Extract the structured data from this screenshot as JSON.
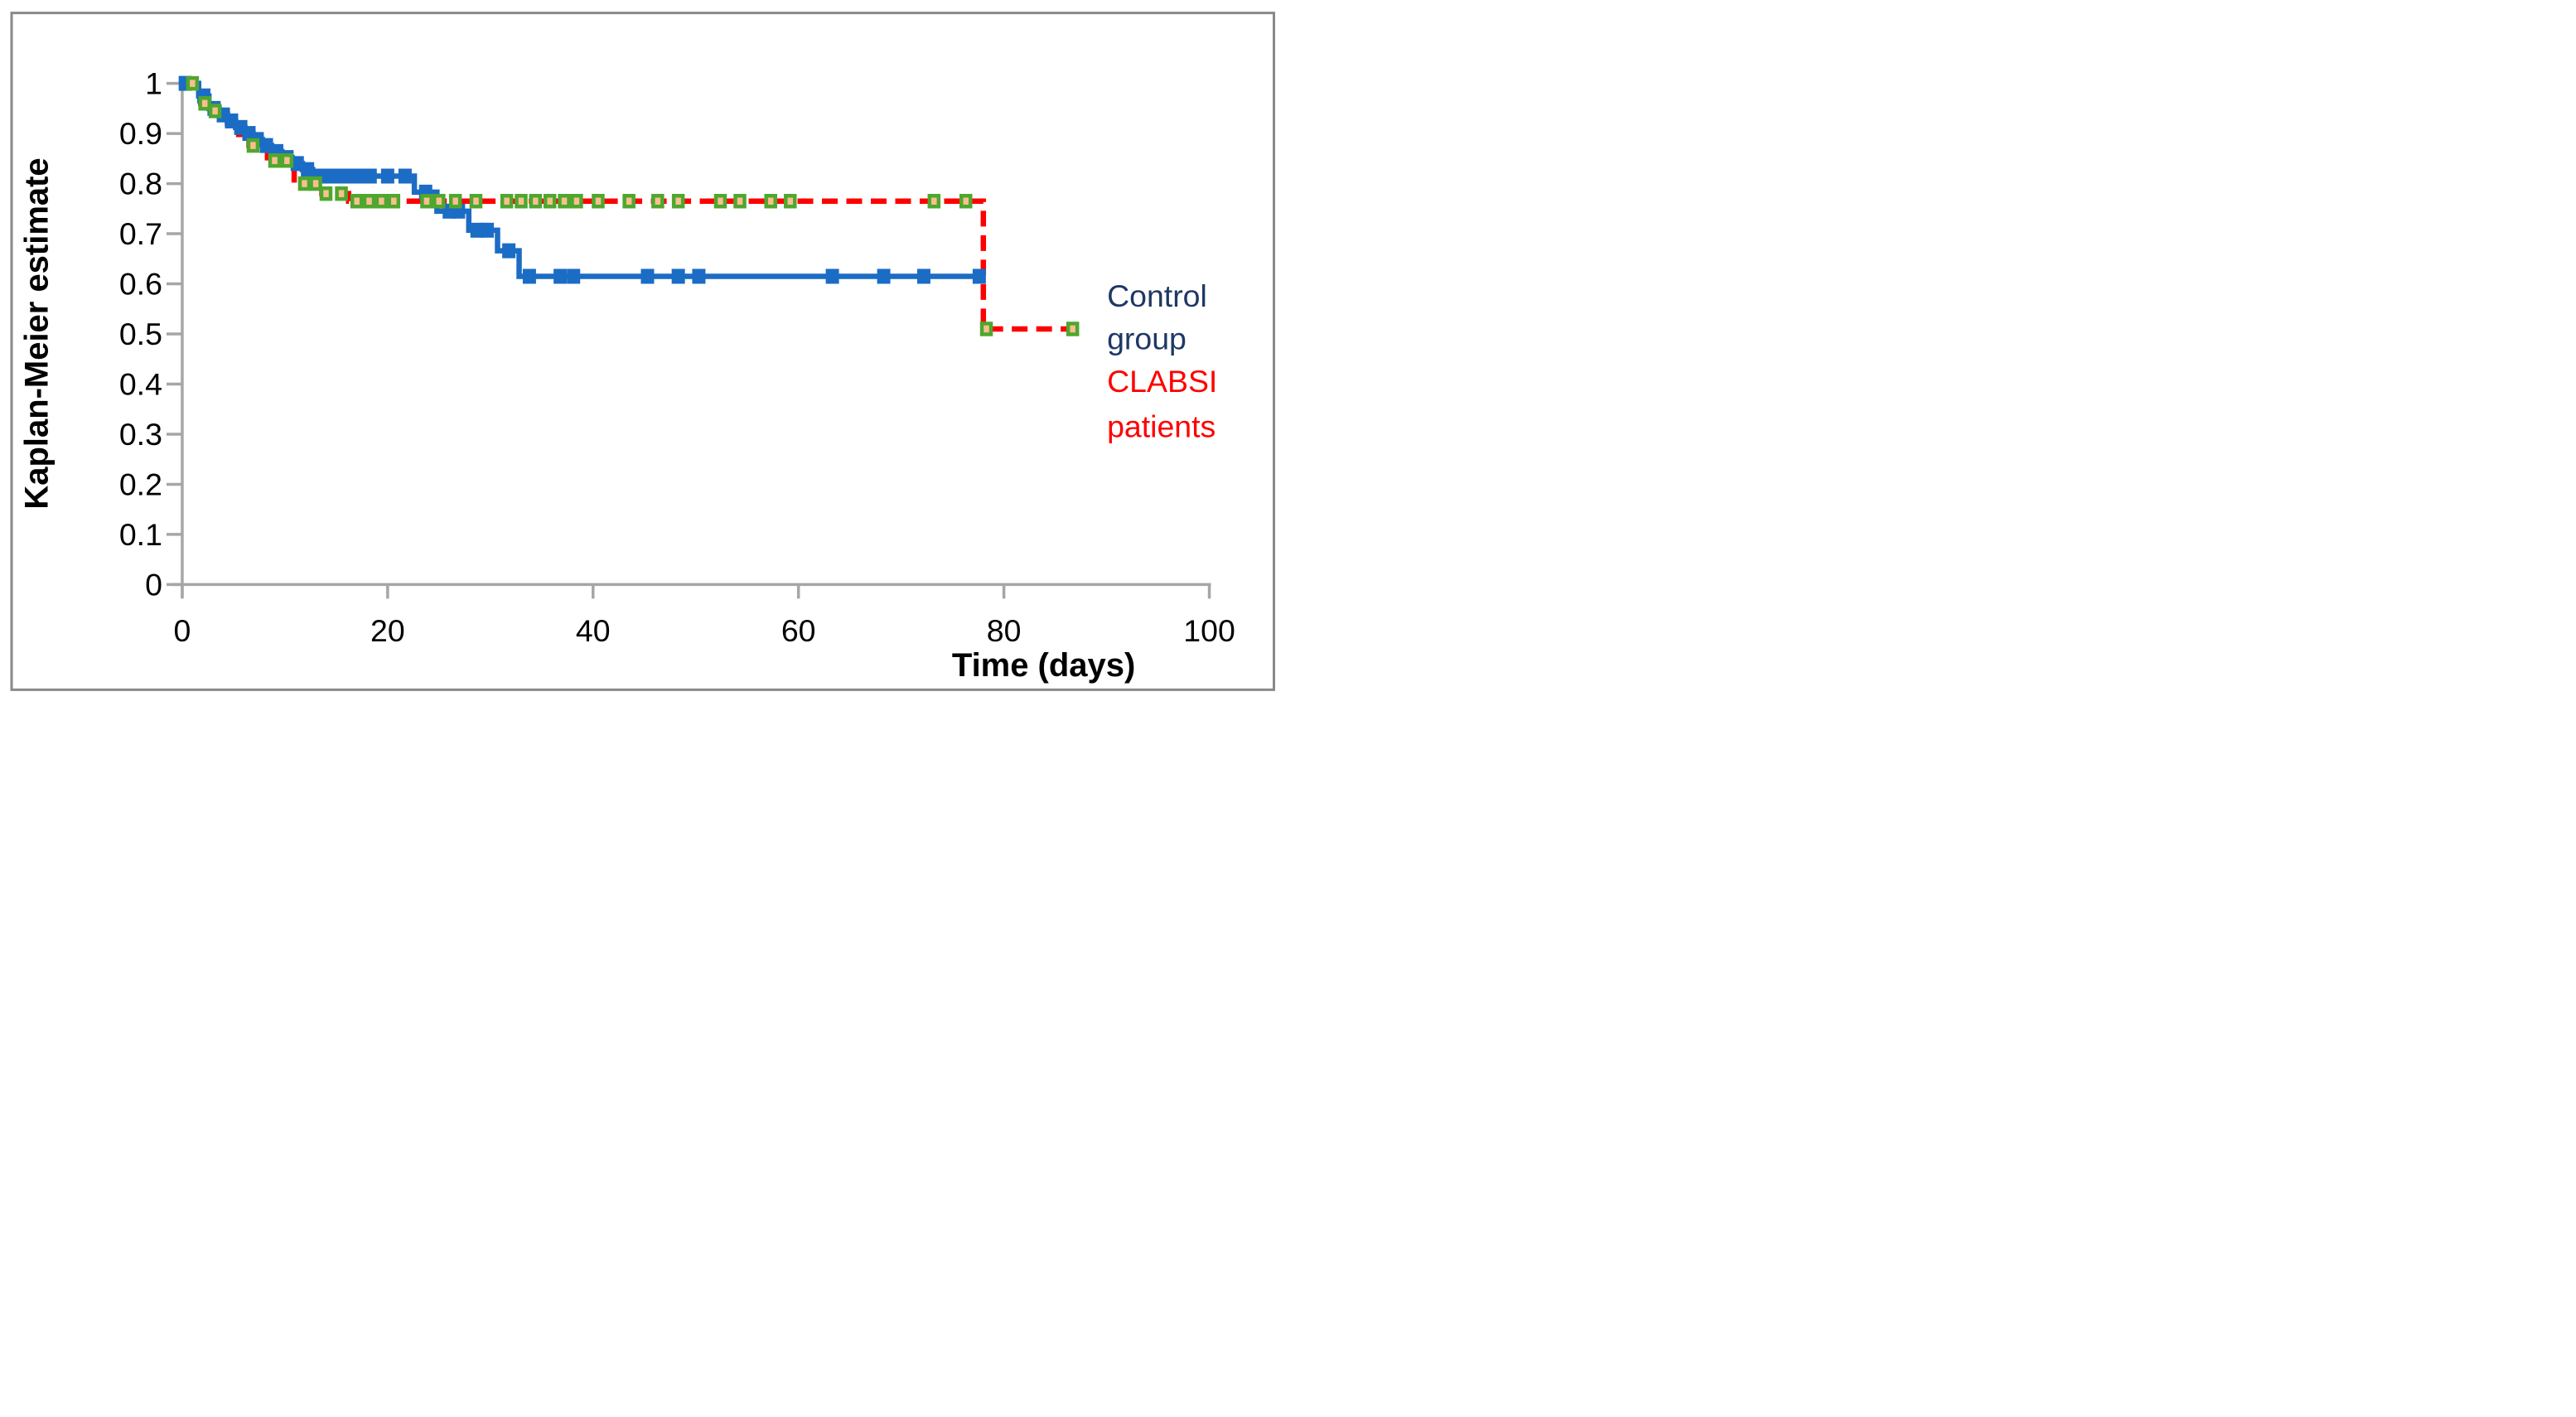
{
  "figure": {
    "border_color": "#898989",
    "background": "#ffffff",
    "axis_color": "#A6A6A6",
    "text_color": "#000000"
  },
  "y_axis": {
    "title": "Kaplan-Meier estimate",
    "tick_labels": [
      "1",
      "0.9",
      "0.8",
      "0.7",
      "0.6",
      "0.5",
      "0.4",
      "0.3",
      "0.2",
      "0.1",
      "0"
    ],
    "tick_values": [
      1,
      0.9,
      0.8,
      0.7,
      0.6,
      0.5,
      0.4,
      0.3,
      0.2,
      0.1,
      0
    ],
    "min": 0,
    "max": 1
  },
  "x_axis": {
    "title": "Time (days)",
    "tick_labels": [
      "0",
      "20",
      "40",
      "60",
      "80",
      "100"
    ],
    "tick_values": [
      0,
      20,
      40,
      60,
      80,
      100
    ],
    "min": 0,
    "max": 100
  },
  "legend": {
    "position": "right",
    "entries": [
      {
        "lines": [
          "Control",
          "group"
        ],
        "color": "#1F3864",
        "series": "Control group"
      },
      {
        "lines": [
          "CLABSI",
          "patients"
        ],
        "color": "#FF0000",
        "series": "CLABSI patients"
      }
    ]
  },
  "chart_data": {
    "type": "line",
    "step": true,
    "kind": "kaplan-meier-survival",
    "title": "",
    "xlabel": "Time (days)",
    "ylabel": "Kaplan-Meier estimate",
    "xlim": [
      0,
      100
    ],
    "ylim": [
      0,
      1
    ],
    "grid": false,
    "legend_position": "right-middle",
    "series": [
      {
        "name": "Control group",
        "color": "#1B6CC4",
        "line_style": "solid",
        "marker": "filled-square",
        "marker_fill": "#1B6CC4",
        "steps": [
          [
            0,
            1.0
          ],
          [
            1.6,
            0.975
          ],
          [
            2.6,
            0.95
          ],
          [
            3.6,
            0.937
          ],
          [
            4.4,
            0.925
          ],
          [
            5.2,
            0.912
          ],
          [
            6.1,
            0.9
          ],
          [
            6.9,
            0.888
          ],
          [
            7.8,
            0.876
          ],
          [
            8.7,
            0.864
          ],
          [
            9.7,
            0.852
          ],
          [
            10.7,
            0.84
          ],
          [
            11.7,
            0.828
          ],
          [
            12.7,
            0.815
          ],
          [
            22.6,
            0.783
          ],
          [
            24.8,
            0.745
          ],
          [
            27.9,
            0.707
          ],
          [
            30.7,
            0.666
          ],
          [
            32.8,
            0.615
          ]
        ],
        "end_day": 78.2,
        "censor_marks_days": [
          0.3,
          2.1,
          3.1,
          4.0,
          4.8,
          5.7,
          6.5,
          7.3,
          8.2,
          9.2,
          10.2,
          11.2,
          12.2,
          13.5,
          14.3,
          15.1,
          15.9,
          16.7,
          17.5,
          18.3,
          20.0,
          21.7,
          23.7,
          26.0,
          26.9,
          28.7,
          29.7,
          31.8,
          33.8,
          36.8,
          38.1,
          45.3,
          48.3,
          50.3,
          63.3,
          68.3,
          72.2,
          77.6
        ]
      },
      {
        "name": "CLABSI patients",
        "color": "#FF0000",
        "line_style": "dashed",
        "marker": "square-outlined",
        "marker_fill": "#FABF8F",
        "marker_border": "#4EA72E",
        "steps": [
          [
            0,
            1.0
          ],
          [
            1.8,
            0.96
          ],
          [
            2.8,
            0.945
          ],
          [
            4.4,
            0.92
          ],
          [
            5.5,
            0.898
          ],
          [
            6.5,
            0.876
          ],
          [
            8.3,
            0.846
          ],
          [
            10.9,
            0.8
          ],
          [
            13.6,
            0.78
          ],
          [
            16.2,
            0.765
          ],
          [
            78,
            0.51
          ]
        ],
        "end_day": 86.9,
        "censor_marks_days": [
          1.0,
          2.2,
          3.2,
          6.9,
          9.0,
          10.2,
          11.9,
          13.0,
          14.0,
          15.5,
          17.0,
          18.2,
          19.4,
          20.6,
          23.8,
          25.0,
          26.6,
          28.6,
          31.6,
          33.0,
          34.4,
          35.8,
          37.2,
          38.4,
          40.5,
          43.5,
          46.3,
          48.3,
          52.4,
          54.3,
          57.3,
          59.2,
          73.2,
          76.3,
          78.3,
          86.7
        ]
      }
    ]
  }
}
